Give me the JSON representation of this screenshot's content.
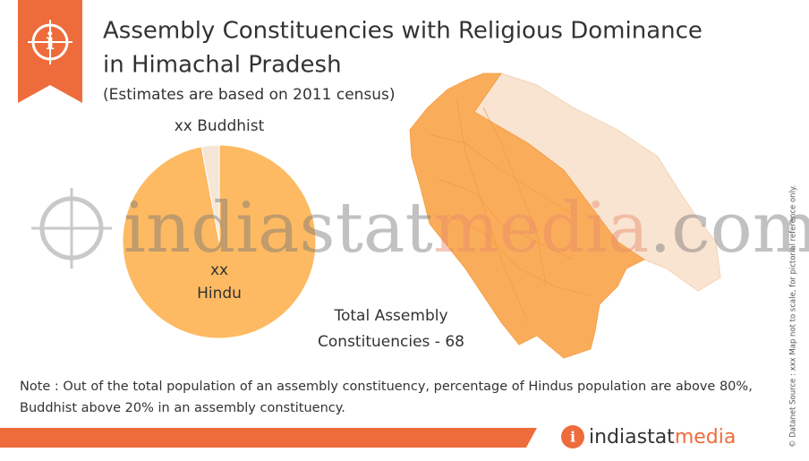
{
  "chart_data": {
    "type": "pie",
    "title": [
      "Assembly Constituencies with Religious Dominance",
      "in Himachal Pradesh"
    ],
    "subtitle": "(Estimates are based on 2011 census)",
    "categories": [
      "Hindu",
      "Buddhist"
    ],
    "values": [
      66,
      2
    ],
    "value_labels": [
      "xx",
      "xx"
    ],
    "colors": [
      "#fdba63",
      "#f6e6d6"
    ]
  },
  "map_label": [
    "Total Assembly",
    "Constituencies - 68"
  ],
  "note": [
    "Note : Out of the total population of an assembly constituency, percentage of Hindus population are above 80%,",
    "Buddhist above 20% in an assembly constituency."
  ],
  "watermark": {
    "part1": "indiastat",
    "part2": "media",
    "part3": ".com"
  },
  "logo": {
    "part1": "indiastat",
    "part2": "media"
  },
  "side_note": "© Datanet  Source : xxx  Map not to scale, for pictorial reference only."
}
